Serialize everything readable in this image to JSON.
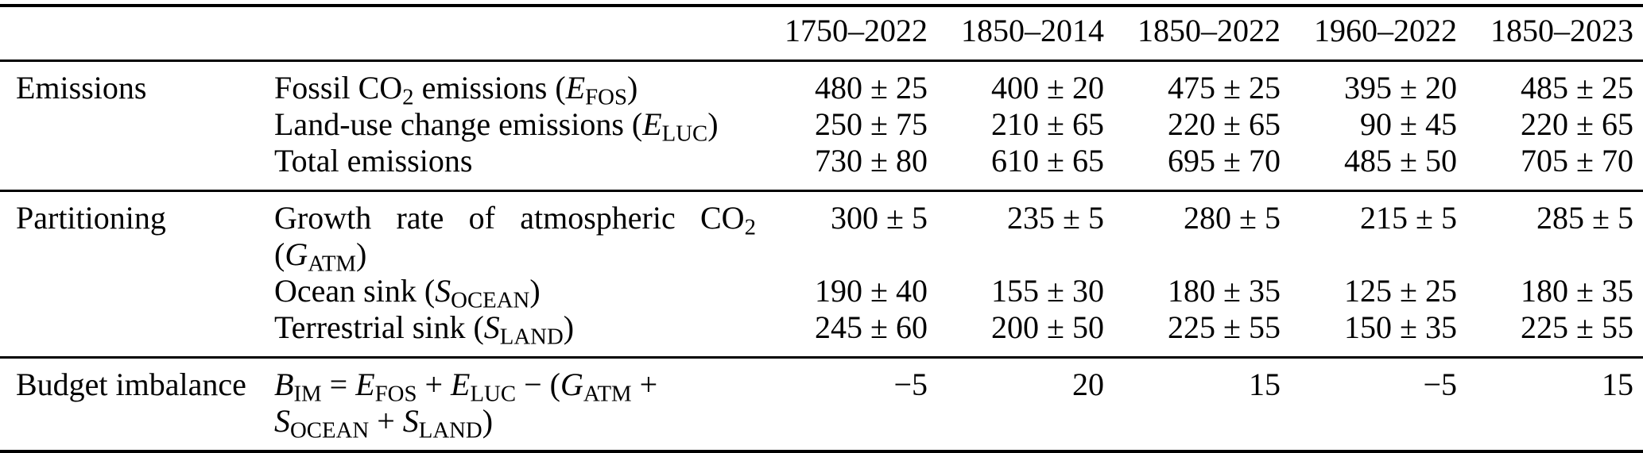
{
  "table": {
    "column_headers": [
      "1750–2022",
      "1850–2014",
      "1850–2022",
      "1960–2022",
      "1850–2023"
    ],
    "sections": [
      {
        "name": "Emissions",
        "rows": [
          {
            "label": [
              {
                "text": "Fossil CO"
              },
              {
                "sub": "2"
              },
              {
                "text": " emissions ("
              },
              {
                "italic": "E"
              },
              {
                "sub": "FOS"
              },
              {
                "text": ")"
              }
            ],
            "values": [
              "480 ± 25",
              "400 ± 20",
              "475 ± 25",
              "395 ± 20",
              "485 ± 25"
            ]
          },
          {
            "label": [
              {
                "text": "Land-use change emissions ("
              },
              {
                "italic": "E"
              },
              {
                "sub": "LUC"
              },
              {
                "text": ")"
              }
            ],
            "values": [
              "250 ± 75",
              "210 ± 65",
              "220 ± 65",
              "90 ± 45",
              "220 ± 65"
            ]
          },
          {
            "label": [
              {
                "text": "Total emissions"
              }
            ],
            "values": [
              "730 ± 80",
              "610 ± 65",
              "695 ± 70",
              "485 ± 50",
              "705 ± 70"
            ]
          }
        ]
      },
      {
        "name": "Partitioning",
        "rows": [
          {
            "label_line1_words": [
              [
                {
                  "text": "Growth"
                }
              ],
              [
                {
                  "text": "rate"
                }
              ],
              [
                {
                  "text": "of"
                }
              ],
              [
                {
                  "text": "atmospheric"
                }
              ],
              [
                {
                  "text": "CO"
                },
                {
                  "sub": "2"
                }
              ]
            ],
            "label_line2": [
              {
                "text": "("
              },
              {
                "italic": "G"
              },
              {
                "sub": "ATM"
              },
              {
                "text": ")"
              }
            ],
            "values": [
              "300 ± 5",
              "235 ± 5",
              "280 ± 5",
              "215 ± 5",
              "285 ± 5"
            ]
          },
          {
            "label": [
              {
                "text": "Ocean sink ("
              },
              {
                "italic": "S"
              },
              {
                "sub": "OCEAN"
              },
              {
                "text": ")"
              }
            ],
            "values": [
              "190 ± 40",
              "155 ± 30",
              "180 ± 35",
              "125 ± 25",
              "180 ± 35"
            ]
          },
          {
            "label": [
              {
                "text": "Terrestrial sink ("
              },
              {
                "italic": "S"
              },
              {
                "sub": "LAND"
              },
              {
                "text": ")"
              }
            ],
            "values": [
              "245 ± 60",
              "200 ± 50",
              "225 ± 55",
              "150 ± 35",
              "225 ± 55"
            ]
          }
        ]
      },
      {
        "name": "Budget imbalance",
        "rows": [
          {
            "label_line1": [
              {
                "italic": "B"
              },
              {
                "sub": "IM"
              },
              {
                "text": " = "
              },
              {
                "italic": "E"
              },
              {
                "sub": "FOS"
              },
              {
                "text": " + "
              },
              {
                "italic": "E"
              },
              {
                "sub": "LUC"
              },
              {
                "text": " − ("
              },
              {
                "italic": "G"
              },
              {
                "sub": "ATM"
              },
              {
                "text": " +"
              }
            ],
            "label_line2": [
              {
                "italic": "S"
              },
              {
                "sub": "OCEAN"
              },
              {
                "text": " + "
              },
              {
                "italic": "S"
              },
              {
                "sub": "LAND"
              },
              {
                "text": ")"
              }
            ],
            "values": [
              "−5",
              "20",
              "15",
              "−5",
              "15"
            ]
          }
        ]
      }
    ]
  }
}
